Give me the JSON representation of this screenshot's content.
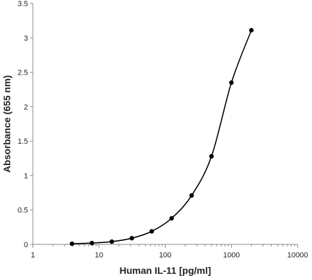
{
  "chart_data": {
    "type": "line",
    "title": "",
    "xlabel": "Human IL-11 [pg/ml]",
    "ylabel": "Absorbance (655 nm)",
    "x_scale": "log",
    "xlim": [
      1,
      10000
    ],
    "ylim": [
      0,
      3.5
    ],
    "x_ticks": [
      "1",
      "10",
      "100",
      "1000",
      "10000"
    ],
    "y_ticks": [
      "0",
      "0.5",
      "1",
      "1.5",
      "2",
      "2.5",
      "3",
      "3.5"
    ],
    "grid": false,
    "legend": "none",
    "series": [
      {
        "x": [
          3.9,
          7.8,
          15.6,
          31.25,
          62.5,
          125,
          250,
          500,
          1000,
          2000
        ],
        "y": [
          0.01,
          0.02,
          0.04,
          0.09,
          0.19,
          0.38,
          0.71,
          1.28,
          2.35,
          3.11
        ],
        "color": "#000000",
        "marker": "circle",
        "line": "smooth"
      }
    ]
  }
}
